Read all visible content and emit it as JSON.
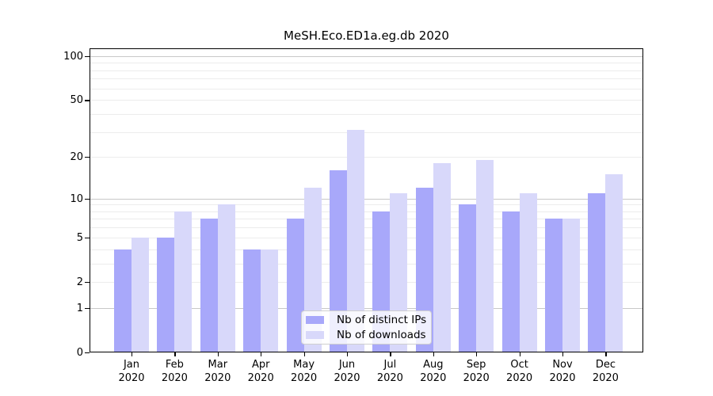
{
  "chart_data": {
    "type": "bar",
    "title": "MeSH.Eco.ED1a.eg.db 2020",
    "categories": [
      "Jan 2020",
      "Feb 2020",
      "Mar 2020",
      "Apr 2020",
      "May 2020",
      "Jun 2020",
      "Jul 2020",
      "Aug 2020",
      "Sep 2020",
      "Oct 2020",
      "Nov 2020",
      "Dec 2020"
    ],
    "series": [
      {
        "name": "Nb of distinct IPs",
        "color": "#a8a8fa",
        "values": [
          4,
          5,
          7,
          4,
          7,
          16,
          8,
          12,
          9,
          8,
          7,
          11
        ]
      },
      {
        "name": "Nb of downloads",
        "color": "#d8d8fa",
        "values": [
          5,
          8,
          9,
          4,
          12,
          31,
          11,
          18,
          19,
          11,
          7,
          15
        ]
      }
    ],
    "yscale": "log1p",
    "ylim": [
      0,
      113
    ],
    "y_ticks": [
      0,
      1,
      2,
      5,
      10,
      20,
      50,
      100
    ],
    "gridlines": {
      "major": [
        1,
        10,
        100
      ],
      "minor": [
        2,
        3,
        4,
        5,
        6,
        7,
        8,
        9,
        20,
        30,
        40,
        50,
        60,
        70,
        80,
        90
      ]
    },
    "grid": true,
    "legend_position": "inside-bottom-center",
    "colors": {
      "major_grid": "#c8c8c8",
      "minor_grid": "#ececec",
      "axis": "#000000",
      "background": "#ffffff"
    }
  }
}
